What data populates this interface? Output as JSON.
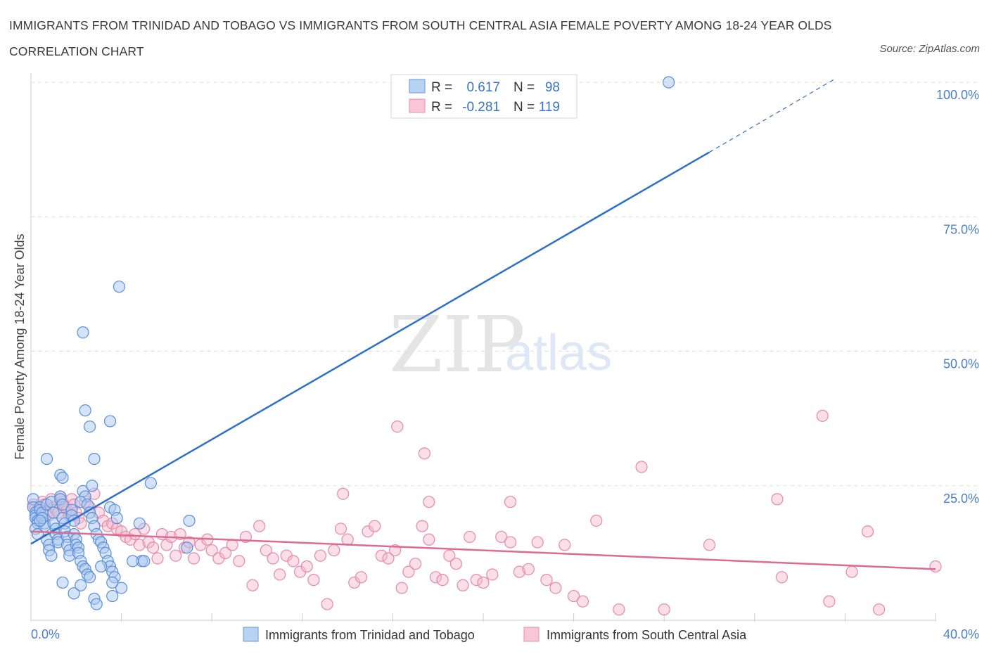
{
  "header": {
    "title": "IMMIGRANTS FROM TRINIDAD AND TOBAGO VS IMMIGRANTS FROM SOUTH CENTRAL ASIA FEMALE POVERTY AMONG 18-24 YEAR OLDS CORRELATION CHART",
    "source": "Source: ZipAtlas.com"
  },
  "watermark": {
    "zip": "ZIP",
    "atlas": "atlas"
  },
  "colors": {
    "blue_fill": "#a9c8f0",
    "blue_stroke": "#5b8fd6",
    "blue_line": "#2f6fcc",
    "pink_fill": "#f5b8cb",
    "pink_stroke": "#e689a8",
    "pink_line": "#e0698f",
    "tick_text": "#4a7fd0",
    "grid": "#dddddd"
  },
  "stats": {
    "series1": {
      "r_label": "R =",
      "r_value": "0.617",
      "n_label": "N =",
      "n_value": "98"
    },
    "series2": {
      "r_label": "R =",
      "r_value": "-0.281",
      "n_label": "N =",
      "n_value": "119"
    }
  },
  "chart_data": {
    "type": "scatter",
    "ylabel": "Female Poverty Among 18-24 Year Olds",
    "xlabel": "",
    "xlim": [
      0,
      40
    ],
    "ylim": [
      0,
      100
    ],
    "x_tick_labels": [
      {
        "value": 0,
        "label": "0.0%"
      },
      {
        "value": 40,
        "label": "40.0%"
      }
    ],
    "y_tick_labels": [
      {
        "value": 25,
        "label": "25.0%"
      },
      {
        "value": 50,
        "label": "50.0%"
      },
      {
        "value": 75,
        "label": "75.0%"
      },
      {
        "value": 100,
        "label": "100.0%"
      }
    ],
    "grid": true,
    "legend_position": "bottom",
    "series": [
      {
        "name": "Immigrants from Trinidad and Tobago",
        "color": "blue",
        "trend": {
          "x0": 0,
          "y0": 14.2,
          "x1": 30,
          "y1": 87.0,
          "dashed_to_x": 35.5,
          "dashed_to_y": 100.5
        },
        "points": [
          [
            0.1,
            22.5
          ],
          [
            0.1,
            21.0
          ],
          [
            0.2,
            20.0
          ],
          [
            0.2,
            19.5
          ],
          [
            0.2,
            19.0
          ],
          [
            0.3,
            18.5
          ],
          [
            0.3,
            18.0
          ],
          [
            0.2,
            17.0
          ],
          [
            0.3,
            16.0
          ],
          [
            0.4,
            21.0
          ],
          [
            0.4,
            20.5
          ],
          [
            0.5,
            20.0
          ],
          [
            0.5,
            19.0
          ],
          [
            0.6,
            18.0
          ],
          [
            0.6,
            17.5
          ],
          [
            0.7,
            21.5
          ],
          [
            0.7,
            15.0
          ],
          [
            0.8,
            14.0
          ],
          [
            0.8,
            13.0
          ],
          [
            0.9,
            12.0
          ],
          [
            0.9,
            22.0
          ],
          [
            1.0,
            20.0
          ],
          [
            1.0,
            18.0
          ],
          [
            1.1,
            17.0
          ],
          [
            1.1,
            16.0
          ],
          [
            1.2,
            15.0
          ],
          [
            1.2,
            14.5
          ],
          [
            1.3,
            23.0
          ],
          [
            1.3,
            22.5
          ],
          [
            1.4,
            21.5
          ],
          [
            1.4,
            19.0
          ],
          [
            1.5,
            18.0
          ],
          [
            1.5,
            16.5
          ],
          [
            1.6,
            15.5
          ],
          [
            1.6,
            14.0
          ],
          [
            1.7,
            13.0
          ],
          [
            1.7,
            12.0
          ],
          [
            1.8,
            20.5
          ],
          [
            1.8,
            19.5
          ],
          [
            1.9,
            18.5
          ],
          [
            1.9,
            16.0
          ],
          [
            2.0,
            15.0
          ],
          [
            2.0,
            14.0
          ],
          [
            2.1,
            13.5
          ],
          [
            2.1,
            12.5
          ],
          [
            2.2,
            11.0
          ],
          [
            2.3,
            10.0
          ],
          [
            2.4,
            9.5
          ],
          [
            2.5,
            8.5
          ],
          [
            2.6,
            8.0
          ],
          [
            0.7,
            30.0
          ],
          [
            1.3,
            27.0
          ],
          [
            1.4,
            26.5
          ],
          [
            2.3,
            24.0
          ],
          [
            2.4,
            23.0
          ],
          [
            2.2,
            22.0
          ],
          [
            2.5,
            21.5
          ],
          [
            2.6,
            20.0
          ],
          [
            2.7,
            19.0
          ],
          [
            2.8,
            17.5
          ],
          [
            2.9,
            16.0
          ],
          [
            3.0,
            15.0
          ],
          [
            3.1,
            14.5
          ],
          [
            3.2,
            13.5
          ],
          [
            3.3,
            12.5
          ],
          [
            3.4,
            11.0
          ],
          [
            3.5,
            10.0
          ],
          [
            3.6,
            9.0
          ],
          [
            3.7,
            8.0
          ],
          [
            2.8,
            30.0
          ],
          [
            2.7,
            25.0
          ],
          [
            2.4,
            39.0
          ],
          [
            2.6,
            36.0
          ],
          [
            3.5,
            37.0
          ],
          [
            2.3,
            53.5
          ],
          [
            3.9,
            62.0
          ],
          [
            5.3,
            25.5
          ],
          [
            7.0,
            18.5
          ],
          [
            6.9,
            13.5
          ],
          [
            4.8,
            18.0
          ],
          [
            4.9,
            11.0
          ],
          [
            5.0,
            11.0
          ],
          [
            4.5,
            11.0
          ],
          [
            3.5,
            21.0
          ],
          [
            3.7,
            20.5
          ],
          [
            3.8,
            19.0
          ],
          [
            4.0,
            6.0
          ],
          [
            3.6,
            4.5
          ],
          [
            2.8,
            4.0
          ],
          [
            2.9,
            3.0
          ],
          [
            1.4,
            7.0
          ],
          [
            1.9,
            5.0
          ],
          [
            2.2,
            6.5
          ],
          [
            3.1,
            10.0
          ],
          [
            3.6,
            7.0
          ],
          [
            0.5,
            19.0
          ],
          [
            0.4,
            18.5
          ],
          [
            28.2,
            100.0
          ]
        ]
      },
      {
        "name": "Immigrants from South Central Asia",
        "color": "pink",
        "trend": {
          "x0": 0,
          "y0": 16.5,
          "x1": 40,
          "y1": 9.5
        },
        "points": [
          [
            0.1,
            21.5
          ],
          [
            0.2,
            21.0
          ],
          [
            0.3,
            20.5
          ],
          [
            0.4,
            20.0
          ],
          [
            0.5,
            22.0
          ],
          [
            0.6,
            21.5
          ],
          [
            0.7,
            20.0
          ],
          [
            0.8,
            19.5
          ],
          [
            0.9,
            22.5
          ],
          [
            1.0,
            21.0
          ],
          [
            1.1,
            20.5
          ],
          [
            1.2,
            20.0
          ],
          [
            1.3,
            23.0
          ],
          [
            1.4,
            22.0
          ],
          [
            1.5,
            21.0
          ],
          [
            1.6,
            20.5
          ],
          [
            1.7,
            19.5
          ],
          [
            1.8,
            22.5
          ],
          [
            1.9,
            21.5
          ],
          [
            2.0,
            20.0
          ],
          [
            2.1,
            19.0
          ],
          [
            2.2,
            18.0
          ],
          [
            2.4,
            22.0
          ],
          [
            2.6,
            21.0
          ],
          [
            2.8,
            23.5
          ],
          [
            3.0,
            20.0
          ],
          [
            3.2,
            18.5
          ],
          [
            3.4,
            17.5
          ],
          [
            3.6,
            18.0
          ],
          [
            3.8,
            17.0
          ],
          [
            4.0,
            16.5
          ],
          [
            4.2,
            15.5
          ],
          [
            4.4,
            15.0
          ],
          [
            4.6,
            16.0
          ],
          [
            4.8,
            14.0
          ],
          [
            5.0,
            17.0
          ],
          [
            5.2,
            14.5
          ],
          [
            5.4,
            13.5
          ],
          [
            5.6,
            11.5
          ],
          [
            5.8,
            16.0
          ],
          [
            6.0,
            14.0
          ],
          [
            6.2,
            15.5
          ],
          [
            6.4,
            12.0
          ],
          [
            6.6,
            16.0
          ],
          [
            6.8,
            13.5
          ],
          [
            7.0,
            14.5
          ],
          [
            7.2,
            11.5
          ],
          [
            7.5,
            14.0
          ],
          [
            7.8,
            15.0
          ],
          [
            8.0,
            13.0
          ],
          [
            8.3,
            11.5
          ],
          [
            8.6,
            12.5
          ],
          [
            8.9,
            14.0
          ],
          [
            9.2,
            11.0
          ],
          [
            9.5,
            15.5
          ],
          [
            9.8,
            6.5
          ],
          [
            10.1,
            17.5
          ],
          [
            10.4,
            13.0
          ],
          [
            10.7,
            11.5
          ],
          [
            11.0,
            8.5
          ],
          [
            11.3,
            12.0
          ],
          [
            11.6,
            11.0
          ],
          [
            11.9,
            9.0
          ],
          [
            12.2,
            10.0
          ],
          [
            12.5,
            7.5
          ],
          [
            12.8,
            12.0
          ],
          [
            13.1,
            3.0
          ],
          [
            13.4,
            13.0
          ],
          [
            13.7,
            17.0
          ],
          [
            14.0,
            15.0
          ],
          [
            14.3,
            7.0
          ],
          [
            14.6,
            8.0
          ],
          [
            14.9,
            16.5
          ],
          [
            15.2,
            17.5
          ],
          [
            15.5,
            12.0
          ],
          [
            15.8,
            11.5
          ],
          [
            16.1,
            13.0
          ],
          [
            16.4,
            6.0
          ],
          [
            16.7,
            9.0
          ],
          [
            17.0,
            10.5
          ],
          [
            17.3,
            17.5
          ],
          [
            17.6,
            15.0
          ],
          [
            17.9,
            8.0
          ],
          [
            18.2,
            7.5
          ],
          [
            18.5,
            12.0
          ],
          [
            18.8,
            10.5
          ],
          [
            19.1,
            6.5
          ],
          [
            19.4,
            15.5
          ],
          [
            19.7,
            7.5
          ],
          [
            20.0,
            7.0
          ],
          [
            20.4,
            8.5
          ],
          [
            20.8,
            15.5
          ],
          [
            21.2,
            14.5
          ],
          [
            21.6,
            9.0
          ],
          [
            22.0,
            9.5
          ],
          [
            22.4,
            14.5
          ],
          [
            22.8,
            7.5
          ],
          [
            23.2,
            6.0
          ],
          [
            23.6,
            14.0
          ],
          [
            24.0,
            4.5
          ],
          [
            24.4,
            3.5
          ],
          [
            25.0,
            18.5
          ],
          [
            26.0,
            2.0
          ],
          [
            27.0,
            28.5
          ],
          [
            28.0,
            2.0
          ],
          [
            30.0,
            14.0
          ],
          [
            33.0,
            22.5
          ],
          [
            33.2,
            8.0
          ],
          [
            35.0,
            38.0
          ],
          [
            35.3,
            3.5
          ],
          [
            36.3,
            9.0
          ],
          [
            37.0,
            16.5
          ],
          [
            37.5,
            2.0
          ],
          [
            40.0,
            10.0
          ],
          [
            16.2,
            36.0
          ],
          [
            17.4,
            31.0
          ],
          [
            13.8,
            23.5
          ],
          [
            17.6,
            22.0
          ],
          [
            21.2,
            22.0
          ]
        ]
      }
    ]
  },
  "legend": {
    "item1": "Immigrants from Trinidad and Tobago",
    "item2": "Immigrants from South Central Asia"
  }
}
